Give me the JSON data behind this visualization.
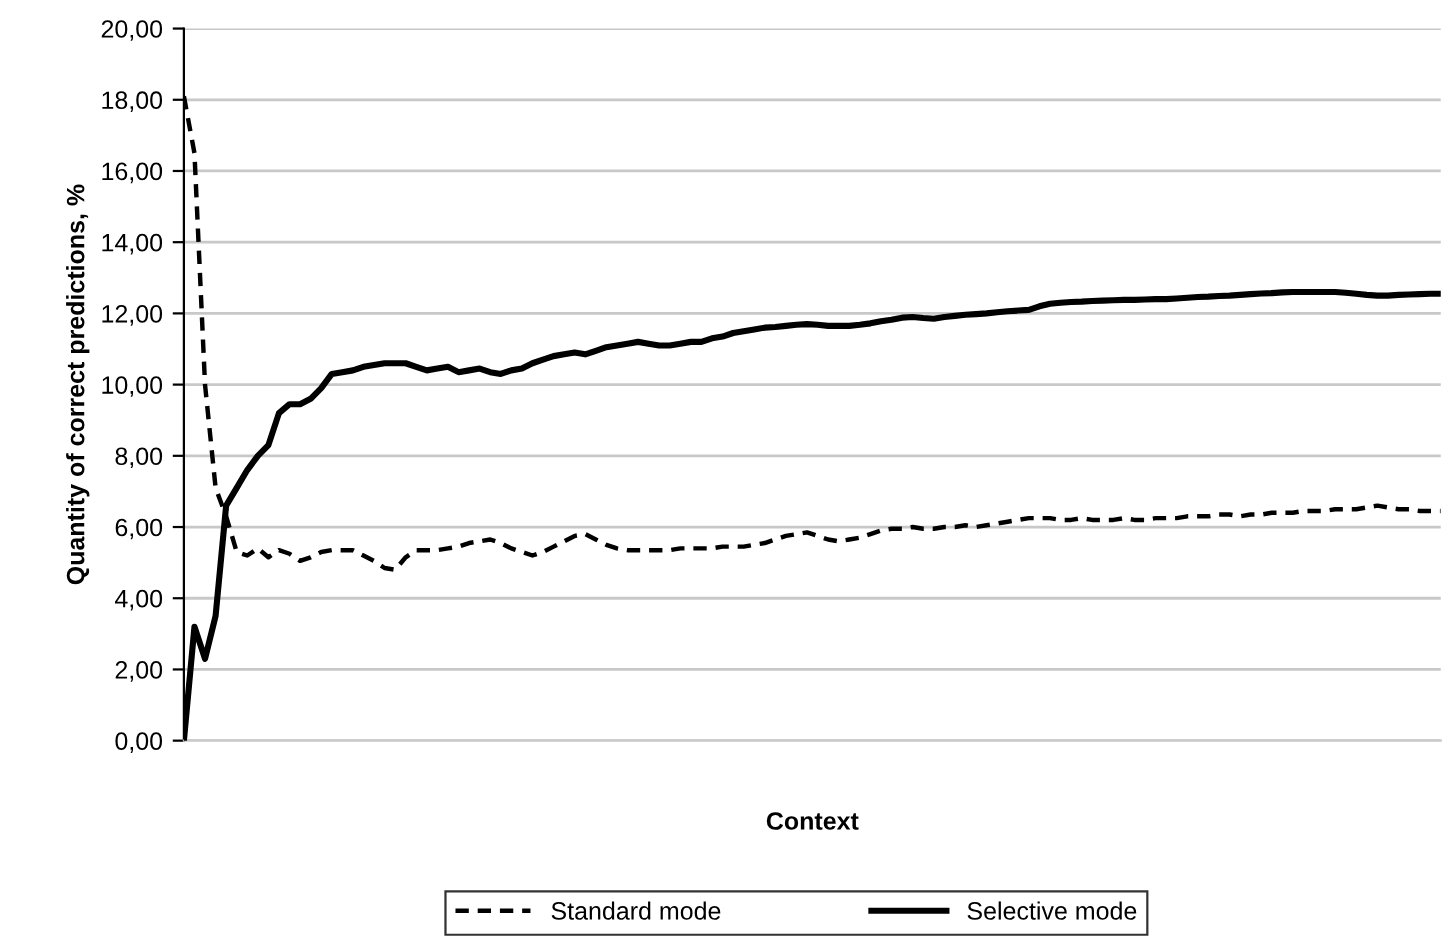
{
  "chart_data": {
    "type": "line",
    "xlabel": "Context",
    "ylabel": "Quantity of correct predictions, %",
    "categories": [
      null,
      null,
      null,
      null,
      null,
      null,
      null,
      null,
      null,
      null,
      null,
      null,
      null,
      null,
      null,
      null,
      null,
      null,
      null,
      null,
      null,
      null,
      null,
      null,
      null,
      null,
      null,
      null,
      null,
      null,
      null,
      null,
      null,
      null,
      null,
      null,
      null,
      null,
      null,
      null,
      null,
      null,
      null,
      null,
      null,
      null,
      null,
      null,
      null,
      null,
      null,
      null,
      null,
      null,
      null,
      null,
      null,
      null,
      null,
      null,
      null,
      null,
      null,
      null,
      null,
      null,
      null,
      null,
      null,
      null,
      null,
      null,
      null,
      null,
      null,
      null,
      null,
      null,
      null,
      null,
      null,
      null,
      null,
      null,
      null,
      null,
      null,
      null,
      null,
      null,
      null,
      null,
      null,
      null,
      null,
      null,
      null,
      null,
      null,
      null,
      null,
      null,
      null,
      null,
      null,
      null,
      null,
      null,
      null,
      null,
      null,
      null,
      null,
      null,
      null,
      null,
      null,
      null,
      null,
      null
    ],
    "series": [
      {
        "name": "Standard mode",
        "color": "#000000",
        "line_style": "dashed",
        "values": [
          18.1,
          16.5,
          10.0,
          7.1,
          6.3,
          5.3,
          5.2,
          5.4,
          5.15,
          5.35,
          5.25,
          5.05,
          5.15,
          5.3,
          5.35,
          5.35,
          5.35,
          5.2,
          5.05,
          4.85,
          4.8,
          5.15,
          5.35,
          5.35,
          5.35,
          5.4,
          5.45,
          5.55,
          5.6,
          5.65,
          5.55,
          5.4,
          5.3,
          5.2,
          5.3,
          5.45,
          5.6,
          5.75,
          5.8,
          5.65,
          5.5,
          5.4,
          5.35,
          5.35,
          5.35,
          5.35,
          5.35,
          5.4,
          5.4,
          5.4,
          5.4,
          5.45,
          5.45,
          5.45,
          5.5,
          5.55,
          5.65,
          5.75,
          5.8,
          5.85,
          5.75,
          5.65,
          5.6,
          5.65,
          5.7,
          5.8,
          5.9,
          5.95,
          5.95,
          6.0,
          5.95,
          5.95,
          6.0,
          6.0,
          6.05,
          6.0,
          6.05,
          6.1,
          6.15,
          6.2,
          6.25,
          6.25,
          6.25,
          6.2,
          6.2,
          6.25,
          6.2,
          6.2,
          6.2,
          6.25,
          6.2,
          6.2,
          6.25,
          6.25,
          6.25,
          6.3,
          6.3,
          6.3,
          6.35,
          6.35,
          6.3,
          6.35,
          6.35,
          6.4,
          6.4,
          6.4,
          6.45,
          6.45,
          6.45,
          6.5,
          6.5,
          6.5,
          6.55,
          6.6,
          6.55,
          6.5,
          6.5,
          6.45,
          6.45,
          6.45
        ]
      },
      {
        "name": "Selective mode",
        "color": "#000000",
        "line_style": "solid",
        "values": [
          0,
          3.2,
          2.3,
          3.5,
          6.6,
          7.1,
          7.6,
          8.0,
          8.3,
          9.2,
          9.45,
          9.45,
          9.6,
          9.9,
          10.3,
          10.35,
          10.4,
          10.5,
          10.55,
          10.6,
          10.6,
          10.6,
          10.5,
          10.4,
          10.45,
          10.5,
          10.35,
          10.4,
          10.45,
          10.35,
          10.3,
          10.4,
          10.45,
          10.6,
          10.7,
          10.8,
          10.85,
          10.9,
          10.85,
          10.95,
          11.05,
          11.1,
          11.15,
          11.2,
          11.15,
          11.1,
          11.1,
          11.15,
          11.2,
          11.2,
          11.3,
          11.35,
          11.45,
          11.5,
          11.55,
          11.6,
          11.62,
          11.65,
          11.68,
          11.7,
          11.68,
          11.65,
          11.65,
          11.65,
          11.68,
          11.72,
          11.78,
          11.82,
          11.88,
          11.9,
          11.87,
          11.85,
          11.9,
          11.93,
          11.96,
          11.98,
          12.0,
          12.03,
          12.06,
          12.08,
          12.1,
          12.2,
          12.27,
          12.3,
          12.32,
          12.33,
          12.35,
          12.36,
          12.37,
          12.38,
          12.38,
          12.39,
          12.4,
          12.4,
          12.42,
          12.44,
          12.46,
          12.47,
          12.49,
          12.5,
          12.52,
          12.54,
          12.56,
          12.57,
          12.59,
          12.6,
          12.6,
          12.6,
          12.6,
          12.6,
          12.58,
          12.55,
          12.52,
          12.5,
          12.5,
          12.52,
          12.53,
          12.54,
          12.55,
          12.55
        ]
      }
    ],
    "ylim": [
      0,
      20
    ],
    "yticks": [
      {
        "value": 0,
        "label": "0,00"
      },
      {
        "value": 2,
        "label": "2,00"
      },
      {
        "value": 4,
        "label": "4,00"
      },
      {
        "value": 6,
        "label": "6,00"
      },
      {
        "value": 8,
        "label": "8,00"
      },
      {
        "value": 10,
        "label": "10,00"
      },
      {
        "value": 12,
        "label": "12,00"
      },
      {
        "value": 14,
        "label": "14,00"
      },
      {
        "value": 16,
        "label": "16,00"
      },
      {
        "value": 18,
        "label": "18,00"
      },
      {
        "value": 20,
        "label": "20,00"
      }
    ],
    "grid": "y",
    "legend": "bottom",
    "marker": "none"
  }
}
